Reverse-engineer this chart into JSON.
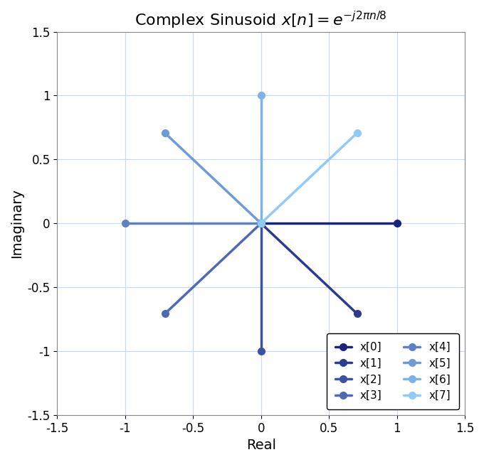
{
  "title": "Complex Sinusoid $x[n] = e^{-j2\\pi n/8}$",
  "xlabel": "Real",
  "ylabel": "Imaginary",
  "xlim": [
    -1.5,
    1.5
  ],
  "ylim": [
    -1.5,
    1.5
  ],
  "xticks": [
    -1.5,
    -1.0,
    -0.5,
    0.0,
    0.5,
    1.0,
    1.5
  ],
  "yticks": [
    -1.5,
    -1.0,
    -0.5,
    0.0,
    0.5,
    1.0,
    1.5
  ],
  "N": 8,
  "color_dark": "#1a237e",
  "color_light": "#90caf9",
  "background_color": "#ffffff",
  "title_fontsize": 16,
  "label_fontsize": 14,
  "tick_fontsize": 12,
  "linewidth": 2.5,
  "markersize": 7,
  "legend_fontsize": 11
}
